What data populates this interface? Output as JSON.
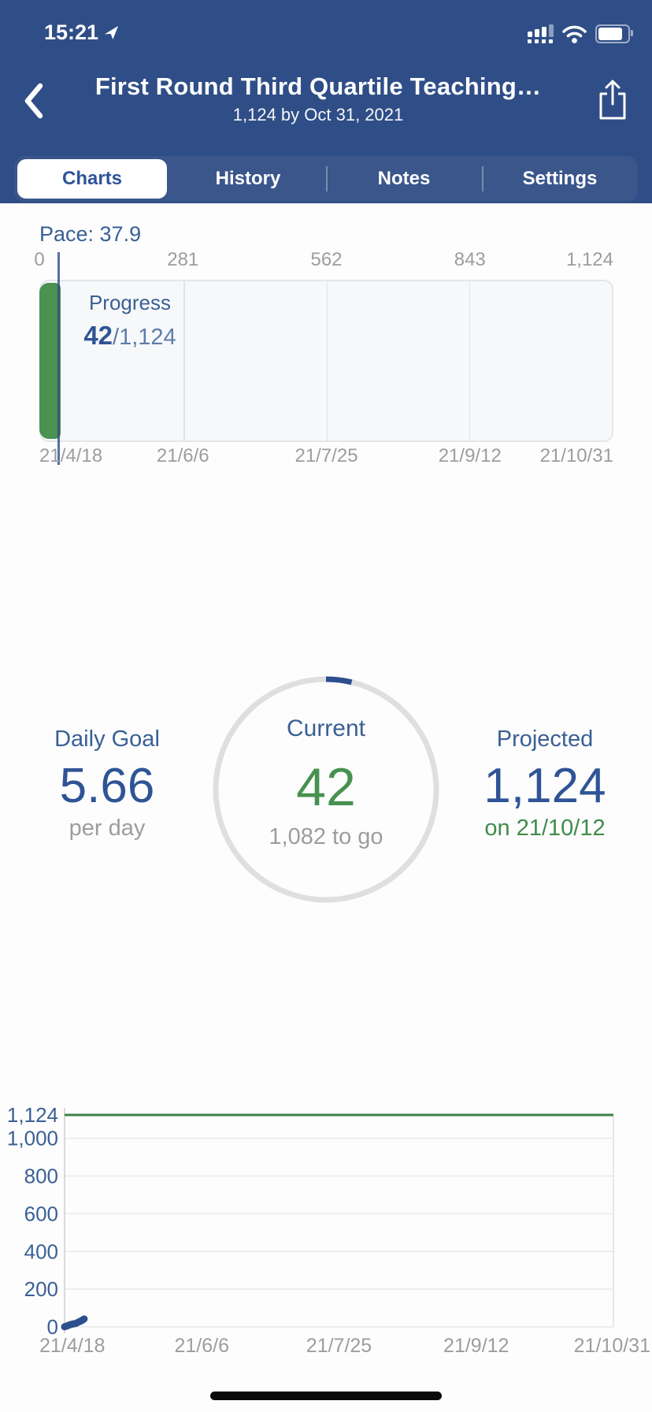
{
  "status_bar": {
    "time": "15:21"
  },
  "header": {
    "title": "First Round Third Quartile Teaching…",
    "subtitle": "1,124 by Oct 31, 2021"
  },
  "tabs": {
    "items": [
      {
        "label": "Charts",
        "selected": true
      },
      {
        "label": "History",
        "selected": false
      },
      {
        "label": "Notes",
        "selected": false
      },
      {
        "label": "Settings",
        "selected": false
      }
    ]
  },
  "pace": {
    "label": "Pace: 37.9",
    "value": 37.9
  },
  "chart_data": [
    {
      "type": "bar",
      "title": "Progress",
      "value": 42,
      "target": 1124,
      "value_label": "42",
      "target_label": "/1,124",
      "pace": 37.9,
      "x_ticks": [
        "0",
        "281",
        "562",
        "843",
        "1,124"
      ],
      "x_tick_values": [
        0,
        281,
        562,
        843,
        1124
      ],
      "x_dates": [
        "21/4/18",
        "21/6/6",
        "21/7/25",
        "21/9/12",
        "21/10/31"
      ],
      "xlim": [
        0,
        1124
      ],
      "bar_color": "#4A9152"
    },
    {
      "type": "line",
      "goal_value": 1124,
      "y_ticks": [
        "1,124",
        "1,000",
        "800",
        "600",
        "400",
        "200",
        "0"
      ],
      "y_tick_values": [
        1124,
        1000,
        800,
        600,
        400,
        200,
        0
      ],
      "x_dates": [
        "21/4/18",
        "21/6/6",
        "21/7/25",
        "21/9/12",
        "21/10/31"
      ],
      "x_range_days": 196,
      "ylim": [
        0,
        1124
      ],
      "goal_line_color": "#3E7F49",
      "series_color": "#2E4F8E",
      "points": [
        {
          "day": 0,
          "value": 1
        },
        {
          "day": 1,
          "value": 6
        },
        {
          "day": 2,
          "value": 12
        },
        {
          "day": 3,
          "value": 16
        },
        {
          "day": 4,
          "value": 18
        },
        {
          "day": 5,
          "value": 26
        },
        {
          "day": 6,
          "value": 32
        },
        {
          "day": 7,
          "value": 42
        }
      ]
    }
  ],
  "stats": {
    "daily_goal": {
      "label": "Daily Goal",
      "value": "5.66",
      "unit": "per day"
    },
    "current": {
      "label": "Current",
      "value": "42",
      "togo": "1,082 to go",
      "fraction": 0.03737
    },
    "projected": {
      "label": "Projected",
      "value": "1,124",
      "date": "on 21/10/12"
    }
  },
  "colors": {
    "header_blue": "#2F4E87",
    "segment_bg": "#3A568B",
    "accent_blue": "#2F5496",
    "label_blue": "#3A6094",
    "green": "#479150",
    "gray": "#9B9DA0"
  }
}
